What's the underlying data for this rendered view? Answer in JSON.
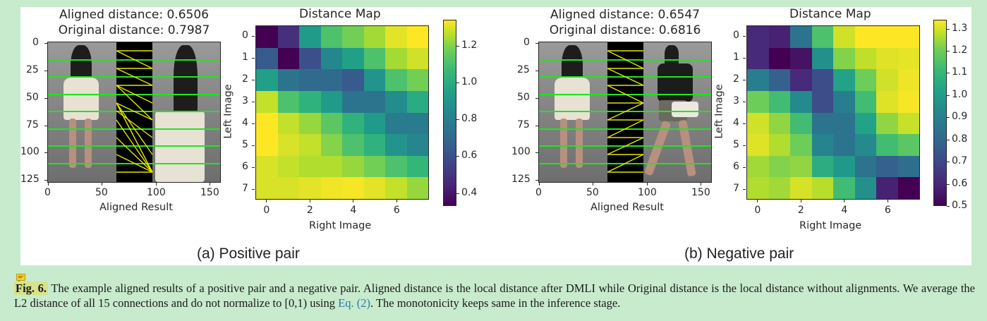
{
  "figure": {
    "panels": [
      {
        "id": "a",
        "subcaption": "(a) Positive pair",
        "aligned_plot": {
          "title_line1": "Aligned distance: 0.6506",
          "title_line2": "Original distance: 0.7987",
          "xlabel": "Aligned Result",
          "xticks": [
            "0",
            "50",
            "100",
            "150"
          ],
          "yticks": [
            "0",
            "25",
            "50",
            "75",
            "100",
            "125"
          ],
          "connection_pattern": "crossed"
        },
        "distance_map": {
          "title": "Distance Map",
          "xlabel": "Right Image",
          "ylabel": "Left Image",
          "xticks": [
            "0",
            "2",
            "4",
            "6"
          ],
          "yticks": [
            "0",
            "1",
            "2",
            "3",
            "4",
            "5",
            "6",
            "7"
          ],
          "colorbar_ticks": [
            "1.2",
            "1.0",
            "0.8",
            "0.6",
            "0.4"
          ]
        }
      },
      {
        "id": "b",
        "subcaption": "(b) Negative pair",
        "aligned_plot": {
          "title_line1": "Aligned distance: 0.6547",
          "title_line2": "Original distance: 0.6816",
          "xlabel": "Aligned Result",
          "xticks": [
            "0",
            "50",
            "100",
            "150"
          ],
          "yticks": [
            "0",
            "25",
            "50",
            "75",
            "100",
            "125"
          ],
          "connection_pattern": "zigzag"
        },
        "distance_map": {
          "title": "Distance Map",
          "xlabel": "Right Image",
          "ylabel": "Left Image",
          "xticks": [
            "0",
            "2",
            "4",
            "6"
          ],
          "yticks": [
            "0",
            "1",
            "2",
            "3",
            "4",
            "5",
            "6",
            "7"
          ],
          "colorbar_ticks": [
            "1.3",
            "1.2",
            "1.1",
            "1.0",
            "0.9",
            "0.8",
            "0.7",
            "0.6",
            "0.5"
          ]
        }
      }
    ]
  },
  "caption": {
    "label": "Fig. 6.",
    "text_before_link": " The example aligned results of a positive pair and a negative pair. Aligned distance is the local distance after DMLI while Original distance is the local distance without alignments. We average the L2 distance of all 15 connections and do not normalize to [0,1) using ",
    "link_text": "Eq. (2)",
    "text_after_link": ". The monotonicity keeps same in the inference stage."
  },
  "chart_data": [
    {
      "type": "heatmap",
      "title": "Distance Map",
      "panel": "(a) Positive pair",
      "xlabel": "Right Image",
      "ylabel": "Left Image",
      "x": [
        0,
        1,
        2,
        3,
        4,
        5,
        6,
        7
      ],
      "y": [
        0,
        1,
        2,
        3,
        4,
        5,
        6,
        7
      ],
      "colormap": "viridis",
      "vrange": [
        0.33,
        1.34
      ],
      "colorbar_ticks": [
        0.4,
        0.6,
        0.8,
        1.0,
        1.2
      ],
      "values": [
        [
          0.33,
          0.47,
          0.88,
          1.05,
          1.12,
          1.2,
          1.3,
          1.34
        ],
        [
          0.62,
          0.33,
          0.58,
          0.8,
          0.9,
          1.05,
          1.2,
          1.27
        ],
        [
          0.9,
          0.72,
          0.68,
          0.68,
          0.62,
          0.85,
          1.05,
          1.12
        ],
        [
          1.25,
          1.05,
          0.98,
          0.88,
          0.72,
          0.72,
          0.82,
          0.95
        ],
        [
          1.34,
          1.25,
          1.18,
          1.08,
          0.98,
          0.88,
          0.75,
          0.75
        ],
        [
          1.34,
          1.28,
          1.25,
          1.15,
          1.05,
          0.98,
          0.85,
          0.8
        ],
        [
          1.28,
          1.25,
          1.22,
          1.22,
          1.18,
          1.12,
          1.05,
          1.0
        ],
        [
          1.28,
          1.28,
          1.3,
          1.32,
          1.33,
          1.3,
          1.25,
          1.18
        ]
      ]
    },
    {
      "type": "heatmap",
      "title": "Distance Map",
      "panel": "(b) Negative pair",
      "xlabel": "Right Image",
      "ylabel": "Left Image",
      "x": [
        0,
        1,
        2,
        3,
        4,
        5,
        6,
        7
      ],
      "y": [
        0,
        1,
        2,
        3,
        4,
        5,
        6,
        7
      ],
      "colormap": "viridis",
      "vrange": [
        0.5,
        1.34
      ],
      "colorbar_ticks": [
        0.5,
        0.6,
        0.7,
        0.8,
        0.9,
        1.0,
        1.1,
        1.2,
        1.3
      ],
      "values": [
        [
          0.6,
          0.58,
          0.82,
          1.1,
          1.28,
          1.34,
          1.34,
          1.34
        ],
        [
          0.6,
          0.5,
          0.54,
          0.92,
          1.18,
          1.26,
          1.3,
          1.31
        ],
        [
          0.86,
          0.76,
          0.6,
          0.7,
          0.98,
          1.15,
          1.28,
          1.32
        ],
        [
          1.15,
          1.08,
          0.9,
          0.7,
          0.86,
          1.08,
          1.3,
          1.33
        ],
        [
          1.28,
          1.2,
          1.08,
          0.82,
          0.82,
          0.98,
          1.2,
          1.27
        ],
        [
          1.3,
          1.24,
          1.15,
          0.88,
          0.82,
          0.9,
          1.08,
          1.12
        ],
        [
          1.22,
          1.18,
          1.2,
          1.02,
          0.95,
          0.82,
          0.76,
          0.8
        ],
        [
          1.24,
          1.22,
          1.29,
          1.25,
          1.08,
          0.92,
          0.58,
          0.5
        ]
      ]
    },
    {
      "type": "table",
      "title": "Aligned vs Original distance",
      "columns": [
        "Pair",
        "Aligned distance",
        "Original distance"
      ],
      "rows": [
        [
          "Positive pair",
          0.6506,
          0.7987
        ],
        [
          "Negative pair",
          0.6547,
          0.6816
        ]
      ]
    }
  ]
}
